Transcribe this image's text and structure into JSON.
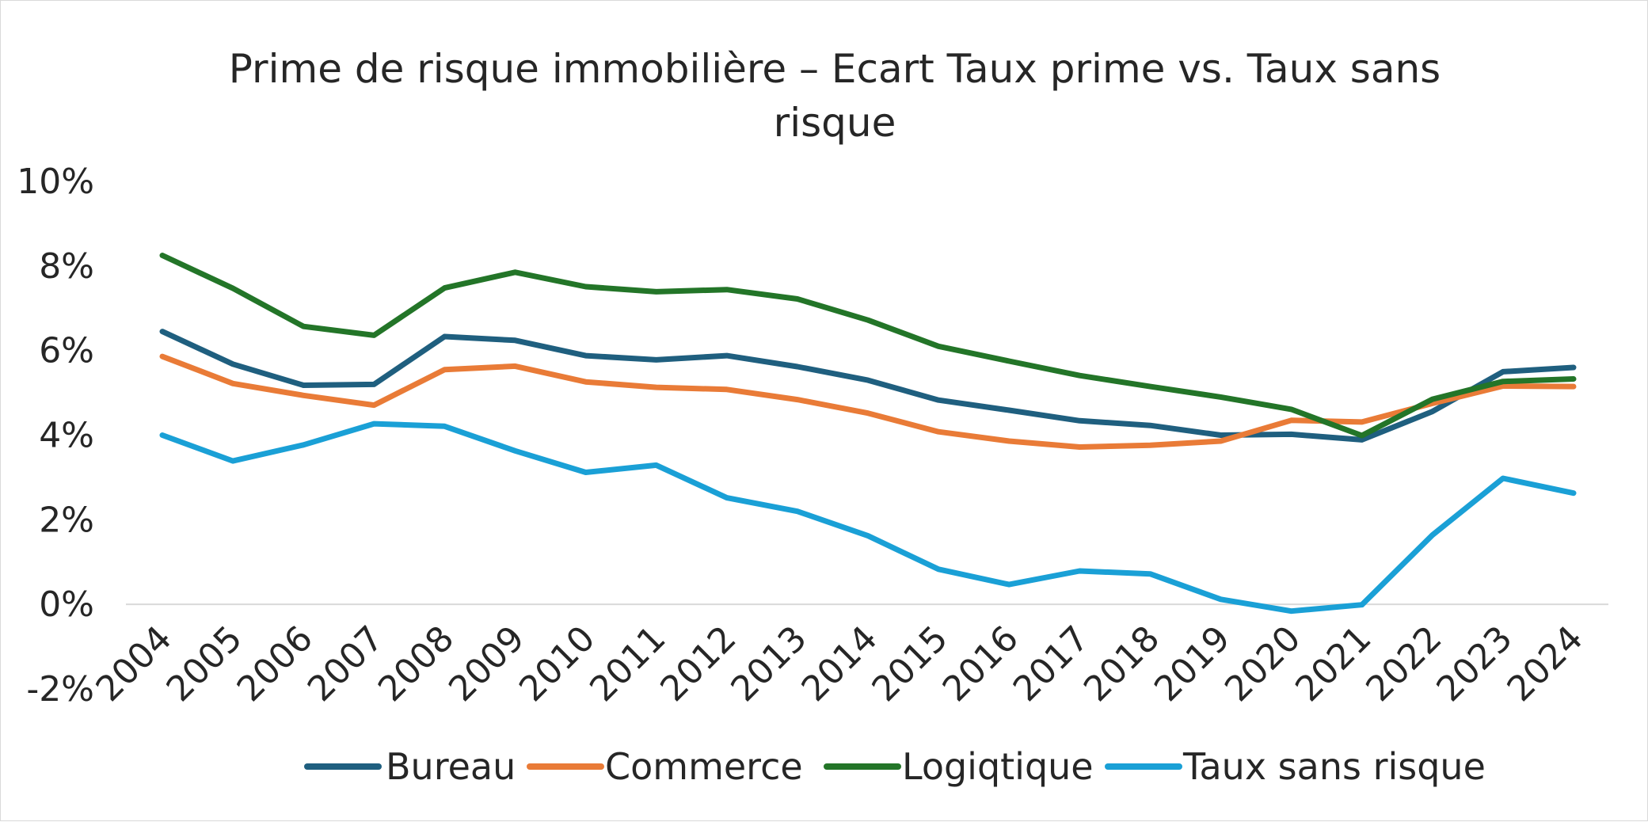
{
  "chart_data": {
    "type": "line",
    "title_lines": [
      "Prime de risque immobilière – Ecart Taux prime vs. Taux sans",
      "risque"
    ],
    "xlabel": "",
    "ylabel": "",
    "ylim": [
      -0.02,
      0.1
    ],
    "y_ticks": [
      {
        "value": 0.1,
        "label": "10%"
      },
      {
        "value": 0.08,
        "label": "8%"
      },
      {
        "value": 0.06,
        "label": "6%"
      },
      {
        "value": 0.04,
        "label": "4%"
      },
      {
        "value": 0.02,
        "label": "2%"
      },
      {
        "value": 0.0,
        "label": "0%"
      },
      {
        "value": -0.02,
        "label": "-2%"
      }
    ],
    "grid": false,
    "legend_position": "bottom",
    "categories": [
      "2004",
      "2005",
      "2006",
      "2007",
      "2008",
      "2009",
      "2010",
      "2011",
      "2012",
      "2013",
      "2014",
      "2015",
      "2016",
      "2017",
      "2018",
      "2019",
      "2020",
      "2021",
      "2022",
      "2023",
      "2024"
    ],
    "series": [
      {
        "name": "Bureau",
        "color": "#1f5f7f",
        "values": [
          0.0645,
          0.0568,
          0.0518,
          0.052,
          0.0633,
          0.0624,
          0.0588,
          0.0578,
          0.0588,
          0.0562,
          0.053,
          0.0483,
          0.0459,
          0.0434,
          0.0423,
          0.04,
          0.0402,
          0.0389,
          0.0456,
          0.055,
          0.056
        ]
      },
      {
        "name": "Commerce",
        "color": "#e97b37",
        "values": [
          0.0586,
          0.0522,
          0.0494,
          0.0471,
          0.0555,
          0.0563,
          0.0526,
          0.0513,
          0.0508,
          0.0484,
          0.0452,
          0.0408,
          0.0386,
          0.0372,
          0.0376,
          0.0386,
          0.0435,
          0.0431,
          0.0475,
          0.0516,
          0.0515
        ]
      },
      {
        "name": "Logiqtique",
        "color": "#237528",
        "values": [
          0.0825,
          0.0747,
          0.0657,
          0.0636,
          0.0748,
          0.0785,
          0.0751,
          0.0739,
          0.0744,
          0.0722,
          0.0672,
          0.061,
          0.0575,
          0.0541,
          0.0515,
          0.049,
          0.0461,
          0.0399,
          0.0485,
          0.0527,
          0.0533
        ]
      },
      {
        "name": "Taux sans risque",
        "color": "#1aa0d6",
        "values": [
          0.04,
          0.0339,
          0.0377,
          0.0427,
          0.0421,
          0.0363,
          0.0312,
          0.0329,
          0.0252,
          0.022,
          0.0162,
          0.0083,
          0.0047,
          0.0079,
          0.0072,
          0.0012,
          -0.0016,
          -0.0001,
          0.0164,
          0.0298,
          0.0263
        ]
      }
    ]
  }
}
